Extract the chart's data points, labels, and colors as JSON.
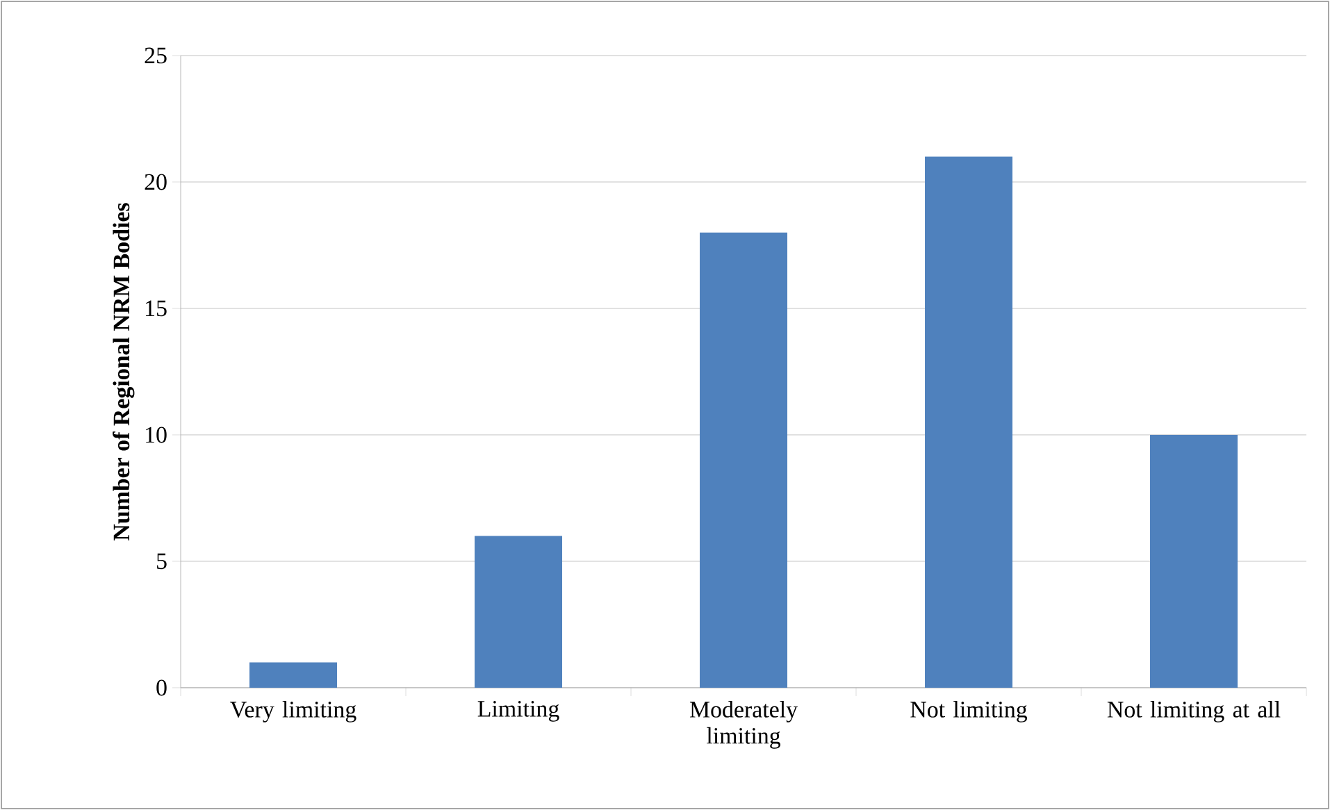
{
  "chart_data": {
    "type": "bar",
    "ylabel": "Number of Regional NRM Bodies",
    "categories": [
      "Very limiting",
      "Limiting",
      "Moderately limiting",
      "Not limiting",
      "Not limiting at all"
    ],
    "values": [
      1,
      6,
      18,
      21,
      10
    ],
    "color": "#4f81bd",
    "ylim": [
      0,
      25
    ],
    "yticks": [
      0,
      5,
      10,
      15,
      20,
      25
    ],
    "grid": "y"
  }
}
